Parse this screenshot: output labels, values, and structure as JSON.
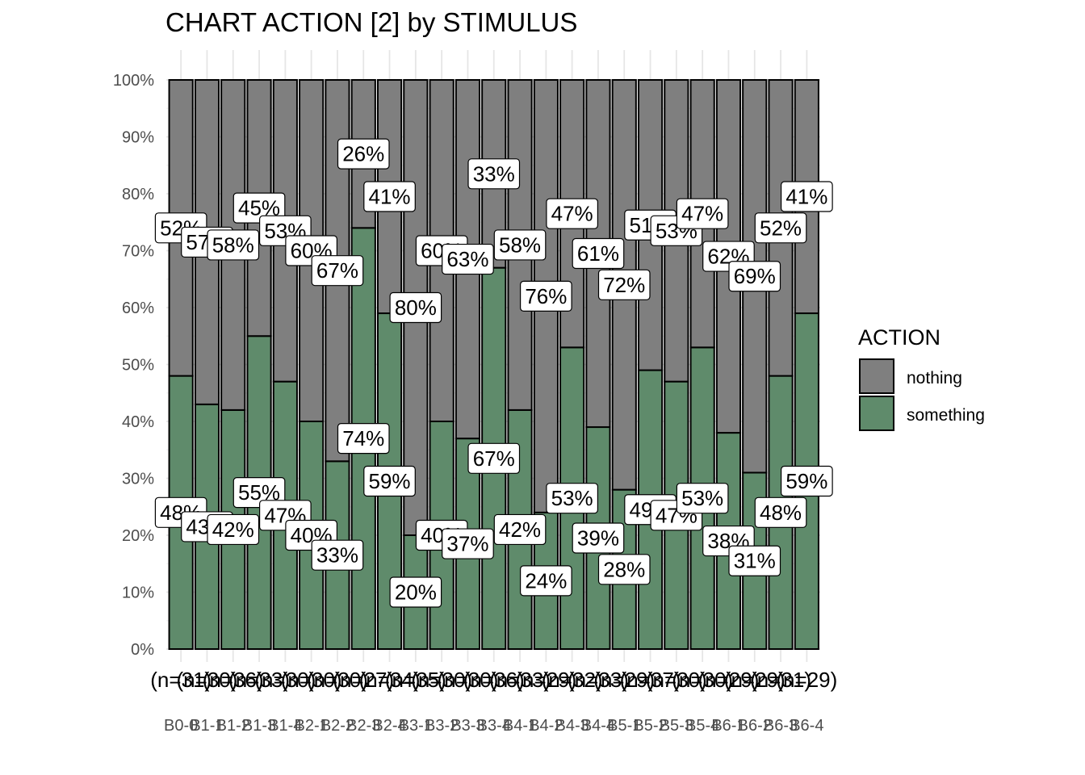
{
  "chart_data": {
    "type": "bar",
    "stacked": true,
    "percent": true,
    "title": "CHART ACTION [2] by STIMULUS",
    "xlabel": "",
    "ylabel": "",
    "ylim": [
      0,
      100
    ],
    "yticks": [
      "0%",
      "10%",
      "20%",
      "30%",
      "40%",
      "50%",
      "60%",
      "70%",
      "80%",
      "90%",
      "100%"
    ],
    "grid": true,
    "legend": {
      "title": "ACTION",
      "position": "right"
    },
    "categories": [
      "B0-0",
      "B1-1",
      "B1-2",
      "B1-3",
      "B1-4",
      "B2-1",
      "B2-2",
      "B2-3",
      "B2-4",
      "B3-1",
      "B3-2",
      "B3-3",
      "B3-4",
      "B4-1",
      "B4-2",
      "B4-3",
      "B4-4",
      "B5-1",
      "B5-2",
      "B5-3",
      "B5-4",
      "B6-1",
      "B6-2",
      "B6-3",
      "B6-4"
    ],
    "n_labels": [
      "(n=31)",
      "(n=30)",
      "(n=36)",
      "(n=33)",
      "(n=30)",
      "(n=30)",
      "(n=30)",
      "(n=27)",
      "(n=34)",
      "(n=35)",
      "(n=30)",
      "(n=30)",
      "(n=36)",
      "(n=33)",
      "(n=29)",
      "(n=32)",
      "(n=33)",
      "(n=29)",
      "(n=37)",
      "(n=30)",
      "(n=30)",
      "(n=29)",
      "(n=29)",
      "(n=31)",
      "(n=29)"
    ],
    "series": [
      {
        "name": "nothing",
        "color": "#7f7f7f",
        "values": [
          52,
          57,
          58,
          45,
          53,
          60,
          67,
          26,
          41,
          80,
          60,
          63,
          33,
          58,
          76,
          47,
          61,
          72,
          51,
          53,
          47,
          62,
          69,
          52,
          41
        ],
        "labels": [
          "52%",
          "57%",
          "58%",
          "45%",
          "53%",
          "60%",
          "67%",
          "26%",
          "41%",
          "80%",
          "60%",
          "63%",
          "33%",
          "58%",
          "76%",
          "47%",
          "61%",
          "72%",
          "51%",
          "53%",
          "47%",
          "62%",
          "69%",
          "52%",
          "41%"
        ]
      },
      {
        "name": "something",
        "color": "#5f8b6b",
        "values": [
          48,
          43,
          42,
          55,
          47,
          40,
          33,
          74,
          59,
          20,
          40,
          37,
          67,
          42,
          24,
          53,
          39,
          28,
          49,
          47,
          53,
          38,
          31,
          48,
          59
        ],
        "labels": [
          "48%",
          "43%",
          "42%",
          "55%",
          "47%",
          "40%",
          "33%",
          "74%",
          "59%",
          "20%",
          "40%",
          "37%",
          "67%",
          "42%",
          "24%",
          "53%",
          "39%",
          "28%",
          "49%",
          "47%",
          "53%",
          "38%",
          "31%",
          "48%",
          "59%"
        ]
      }
    ]
  }
}
